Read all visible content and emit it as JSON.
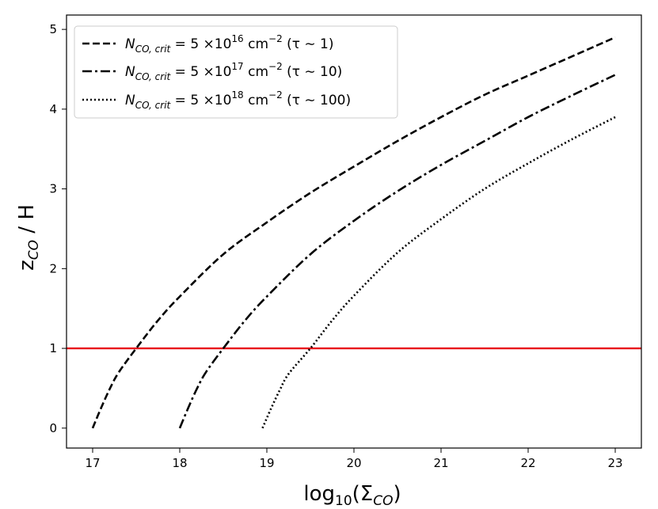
{
  "chart_data": {
    "type": "line",
    "xlabel": "log₁₀(Σ_CO)",
    "ylabel": "z_CO / H",
    "xlim": [
      16.7,
      23.3
    ],
    "ylim": [
      -0.25,
      5.18
    ],
    "xticks": [
      17,
      18,
      19,
      20,
      21,
      22,
      23
    ],
    "yticks": [
      0,
      1,
      2,
      3,
      4,
      5
    ],
    "grid": false,
    "legend_position": "top-left",
    "hline": {
      "y": 1,
      "color": "#e8141c"
    },
    "series": [
      {
        "name": "N_CO,crit = 5 ×10^16 cm^−2 (τ ∼ 1)",
        "style": "dashed",
        "color": "#000000",
        "x": [
          17.0,
          17.1,
          17.2,
          17.3,
          17.5,
          17.75,
          18.0,
          18.5,
          19.0,
          19.5,
          20.0,
          20.5,
          21.0,
          21.5,
          22.0,
          22.5,
          23.0
        ],
        "y": [
          0.0,
          0.26,
          0.5,
          0.7,
          1.0,
          1.35,
          1.65,
          2.18,
          2.58,
          2.95,
          3.28,
          3.6,
          3.9,
          4.18,
          4.42,
          4.66,
          4.9
        ]
      },
      {
        "name": "N_CO,crit = 5 ×10^17 cm^−2 (τ ∼ 10)",
        "style": "dashdot",
        "color": "#000000",
        "x": [
          18.0,
          18.1,
          18.2,
          18.3,
          18.5,
          18.75,
          19.0,
          19.5,
          20.0,
          20.5,
          21.0,
          21.5,
          22.0,
          22.5,
          23.0
        ],
        "y": [
          0.0,
          0.26,
          0.5,
          0.7,
          1.0,
          1.35,
          1.65,
          2.18,
          2.6,
          2.97,
          3.3,
          3.6,
          3.9,
          4.17,
          4.43
        ]
      },
      {
        "name": "N_CO,crit = 5 ×10^18 cm^−2 (τ ∼ 100)",
        "style": "dotted",
        "color": "#000000",
        "x": [
          18.95,
          19.05,
          19.15,
          19.25,
          19.5,
          19.75,
          20.0,
          20.5,
          21.0,
          21.5,
          22.0,
          22.5,
          23.0
        ],
        "y": [
          0.0,
          0.25,
          0.48,
          0.68,
          1.0,
          1.35,
          1.66,
          2.2,
          2.62,
          3.0,
          3.32,
          3.62,
          3.9
        ]
      }
    ]
  },
  "legend": {
    "items": [
      {
        "prefix": "N",
        "sub": "CO, crit",
        "eq": " = 5 ×10",
        "sup": "16",
        "unit": " cm",
        "unit_sup": "−2",
        "tail": " (τ ∼ 1)"
      },
      {
        "prefix": "N",
        "sub": "CO, crit",
        "eq": " = 5 ×10",
        "sup": "17",
        "unit": " cm",
        "unit_sup": "−2",
        "tail": " (τ ∼ 10)"
      },
      {
        "prefix": "N",
        "sub": "CO, crit",
        "eq": " = 5 ×10",
        "sup": "18",
        "unit": " cm",
        "unit_sup": "−2",
        "tail": " (τ ∼ 100)"
      }
    ]
  },
  "axes": {
    "xlabel_main": "log",
    "xlabel_sub": "10",
    "xlabel_open": "(Σ",
    "xlabel_sub2": "CO",
    "xlabel_close": ")",
    "ylabel_main": "z",
    "ylabel_sub": "CO",
    "ylabel_tail": " / H"
  }
}
